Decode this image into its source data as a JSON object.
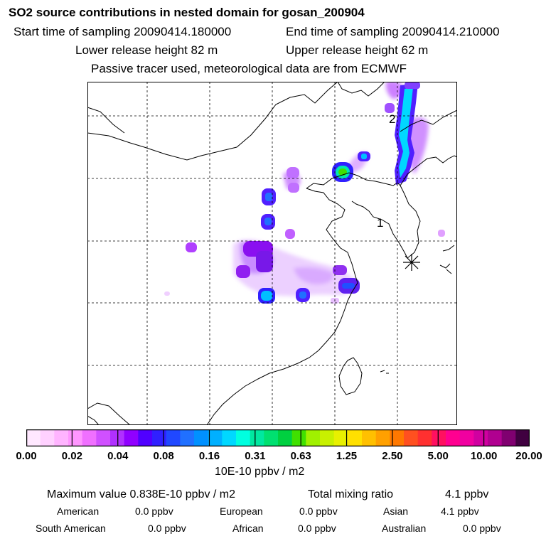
{
  "title": "SO2 source contributions in nested domain for gosan_200904",
  "start_sampling": "Start time of sampling 20090414.180000",
  "end_sampling": "End time of sampling 20090414.210000",
  "lower_release": "Lower release height   82 m",
  "upper_release": "Upper release height   62 m",
  "tracer_info": "Passive tracer used, meteorological data are from ECMWF",
  "map": {
    "markers": [
      "1",
      "2"
    ],
    "station_icon": "asterisk-station-icon"
  },
  "colorbar": {
    "unit_label": "10E-10 ppbv / m2",
    "tick_labels": [
      "0.00",
      "0.02",
      "0.04",
      "0.08",
      "0.16",
      "0.31",
      "0.63",
      "1.25",
      "2.50",
      "5.00",
      "10.00",
      "20.00"
    ],
    "colors": [
      "#ffe8ff",
      "#ffd1ff",
      "#ffb4ff",
      "#ff96ff",
      "#f070ff",
      "#d050ff",
      "#b030ff",
      "#9000ff",
      "#5000ff",
      "#3020ff",
      "#2048ff",
      "#2070ff",
      "#0090ff",
      "#00b0ff",
      "#00d8ff",
      "#00ffe0",
      "#00e8a0",
      "#00e070",
      "#00d040",
      "#40e000",
      "#a0f000",
      "#c8f000",
      "#e8f000",
      "#ffe000",
      "#ffc000",
      "#ffa000",
      "#ff7800",
      "#ff5020",
      "#ff3030",
      "#ff1060",
      "#ff0090",
      "#f000a0",
      "#d000a0",
      "#b00090",
      "#800070",
      "#400040"
    ]
  },
  "summary": {
    "max_label": "Maximum value  0.838E-10 ppbv / m2",
    "total_label": "Total mixing ratio",
    "total_value": "4.1 ppbv",
    "regions": [
      {
        "name": "American",
        "value": "0.0 ppbv"
      },
      {
        "name": "European",
        "value": "0.0 ppbv"
      },
      {
        "name": "Asian",
        "value": "4.1 ppbv"
      },
      {
        "name": "South American",
        "value": "0.0 ppbv"
      },
      {
        "name": "African",
        "value": "0.0 ppbv"
      },
      {
        "name": "Australian",
        "value": "0.0 ppbv"
      }
    ]
  }
}
